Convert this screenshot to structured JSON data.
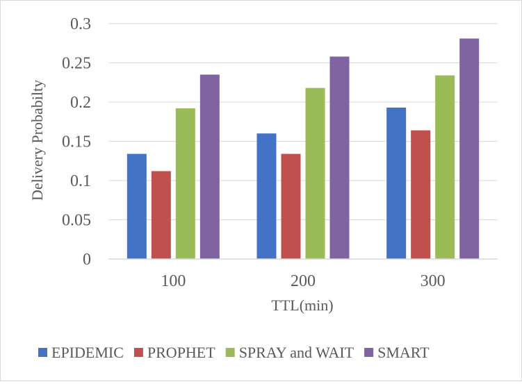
{
  "chart_data": {
    "type": "bar",
    "categories": [
      "100",
      "200",
      "300"
    ],
    "series": [
      {
        "name": "EPIDEMIC",
        "color": "#4472c4",
        "values": [
          0.134,
          0.16,
          0.193
        ]
      },
      {
        "name": "PROPHET",
        "color": "#c0504d",
        "values": [
          0.112,
          0.134,
          0.164
        ]
      },
      {
        "name": "SPRAY and WAIT",
        "color": "#9bbb59",
        "values": [
          0.192,
          0.218,
          0.234
        ]
      },
      {
        "name": "SMART",
        "color": "#8064a2",
        "values": [
          0.235,
          0.258,
          0.281
        ]
      }
    ],
    "title": "",
    "xlabel": "TTL(min)",
    "ylabel": "Delivery Probabilty",
    "ylim": [
      0,
      0.3
    ],
    "yticks": [
      "0",
      "0.05",
      "0.1",
      "0.15",
      "0.2",
      "0.25",
      "0.3"
    ],
    "grid": true,
    "legend_position": "bottom"
  }
}
